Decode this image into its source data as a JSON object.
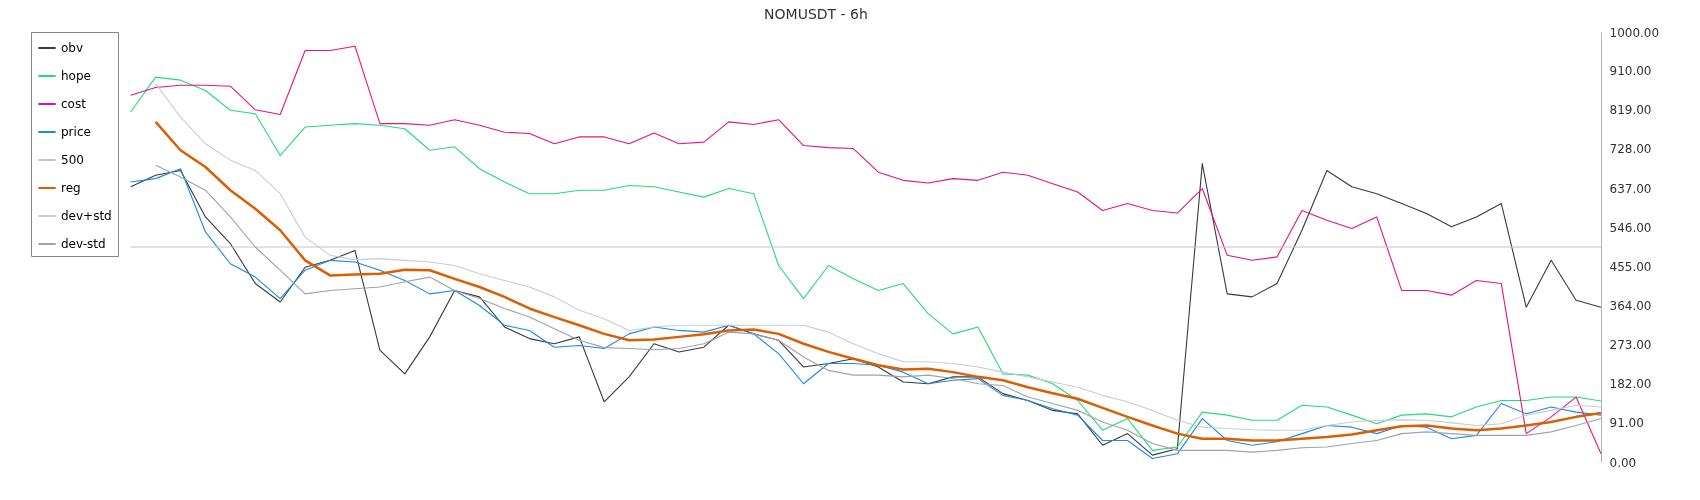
{
  "chart_data": {
    "type": "line",
    "title": "NOMUSDT - 6h",
    "categories": [
      null,
      null,
      null,
      null,
      null,
      null,
      null,
      null,
      null,
      null,
      null,
      null,
      null,
      null,
      null,
      null,
      null,
      null,
      null,
      null,
      null,
      null,
      null,
      null,
      null,
      null,
      null,
      null,
      null,
      null,
      null,
      null,
      null,
      null,
      null,
      null,
      null,
      null,
      null,
      null,
      null,
      null,
      null,
      null,
      null,
      null,
      null,
      null,
      null,
      null,
      null,
      null,
      null,
      null,
      null,
      null,
      null,
      null,
      null,
      null,
      null,
      null,
      null,
      null
    ],
    "series": [
      {
        "name": "obv",
        "color": "#3a3a3a",
        "values": [
          null,
          null,
          null,
          null,
          640,
          667,
          678,
          570,
          508,
          415,
          372,
          453,
          469,
          492,
          260,
          205,
          291,
          399,
          384,
          314,
          287,
          275,
          291,
          140,
          198,
          275,
          256,
          267,
          318,
          298,
          283,
          221,
          229,
          240,
          221,
          186,
          182,
          198,
          198,
          159,
          143,
          120,
          112,
          39,
          66,
          16,
          31,
          694,
          391,
          384,
          415,
          539,
          678,
          640,
          624,
          601,
          578,
          547,
          570,
          601,
          360,
          469,
          376,
          360
        ]
      },
      {
        "name": "hope",
        "color": "#22dd77",
        "values": [
          null,
          null,
          null,
          null,
          814,
          895,
          888,
          864,
          818,
          810,
          713,
          779,
          783,
          787,
          783,
          775,
          725,
          733,
          682,
          651,
          624,
          624,
          632,
          632,
          643,
          640,
          628,
          616,
          636,
          624,
          457,
          380,
          457,
          426,
          399,
          415,
          345,
          298,
          314,
          205,
          202,
          182,
          143,
          74,
          101,
          27,
          35,
          116,
          109,
          97,
          97,
          132,
          128,
          109,
          89,
          109,
          112,
          105,
          128,
          143,
          143,
          151,
          151,
          142
        ]
      },
      {
        "name": "cost",
        "color": "#e8137f",
        "values": [
          null,
          null,
          null,
          null,
          853,
          871,
          876,
          876,
          874,
          819,
          808,
          957,
          957,
          967,
          787,
          787,
          783,
          796,
          783,
          767,
          764,
          740,
          756,
          756,
          740,
          765,
          740,
          744,
          791,
          785,
          796,
          736,
          731,
          729,
          674,
          655,
          649,
          659,
          655,
          674,
          667,
          647,
          628,
          585,
          601,
          585,
          579,
          636,
          481,
          469,
          477,
          585,
          562,
          543,
          570,
          399,
          399,
          388,
          422,
          415,
          66,
          105,
          151,
          19
        ]
      },
      {
        "name": "price",
        "color": "#1e88e5",
        "values": [
          null,
          null,
          null,
          null,
          651,
          659,
          682,
          535,
          461,
          430,
          380,
          446,
          469,
          465,
          446,
          422,
          391,
          399,
          364,
          318,
          306,
          267,
          271,
          264,
          298,
          314,
          306,
          302,
          318,
          298,
          252,
          182,
          229,
          229,
          225,
          209,
          182,
          190,
          194,
          155,
          143,
          124,
          109,
          50,
          50,
          8,
          19,
          101,
          50,
          39,
          47,
          66,
          85,
          81,
          66,
          85,
          81,
          54,
          62,
          136,
          112,
          128,
          116,
          109
        ]
      },
      {
        "name": "500",
        "color": "#c4c4c4",
        "values": [
          null,
          null,
          null,
          null,
          500,
          500,
          500,
          500,
          500,
          500,
          500,
          500,
          500,
          500,
          500,
          500,
          500,
          500,
          500,
          500,
          500,
          500,
          500,
          500,
          500,
          500,
          500,
          500,
          500,
          500,
          500,
          500,
          500,
          500,
          500,
          500,
          500,
          500,
          500,
          500,
          500,
          500,
          500,
          500,
          500,
          500,
          500,
          500,
          500,
          500,
          500,
          500,
          500,
          500,
          500,
          500,
          500,
          500,
          500,
          500,
          500,
          500,
          500,
          500
        ]
      },
      {
        "name": "reg",
        "color": "#d95f02",
        "values": [
          null,
          null,
          null,
          null,
          null,
          791,
          725,
          686,
          632,
          589,
          539,
          469,
          434,
          436,
          438,
          447,
          446,
          426,
          407,
          384,
          357,
          337,
          318,
          298,
          283,
          285,
          291,
          297,
          306,
          308,
          298,
          275,
          256,
          240,
          225,
          215,
          217,
          209,
          198,
          190,
          174,
          160,
          147,
          126,
          105,
          85,
          66,
          54,
          54,
          50,
          50,
          54,
          58,
          64,
          74,
          83,
          85,
          78,
          74,
          78,
          85,
          93,
          105,
          114
        ]
      },
      {
        "name": "dev+std",
        "color": "#c8cdd2",
        "values": [
          null,
          null,
          null,
          null,
          null,
          880,
          802,
          740,
          702,
          678,
          624,
          523,
          481,
          470,
          473,
          469,
          465,
          457,
          438,
          422,
          407,
          384,
          353,
          333,
          306,
          314,
          318,
          318,
          318,
          318,
          318,
          318,
          302,
          275,
          252,
          233,
          233,
          229,
          221,
          209,
          198,
          186,
          174,
          155,
          140,
          120,
          97,
          81,
          78,
          75,
          74,
          74,
          85,
          93,
          97,
          98,
          97,
          91,
          85,
          89,
          109,
          120,
          132,
          128
        ]
      },
      {
        "name": "dev-std",
        "color": "#9aa4ad",
        "values": [
          null,
          null,
          null,
          null,
          null,
          690,
          663,
          632,
          570,
          500,
          446,
          391,
          399,
          403,
          407,
          419,
          430,
          399,
          380,
          357,
          337,
          310,
          283,
          266,
          264,
          261,
          264,
          275,
          302,
          298,
          283,
          244,
          213,
          202,
          202,
          198,
          202,
          194,
          182,
          178,
          151,
          136,
          120,
          93,
          74,
          43,
          27,
          27,
          27,
          23,
          27,
          33,
          35,
          43,
          50,
          66,
          70,
          66,
          62,
          62,
          62,
          70,
          85,
          101
        ]
      }
    ],
    "ylim": [
      0,
      1000
    ],
    "yticks": [
      {
        "value": 0,
        "label": "0.00"
      },
      {
        "value": 91,
        "label": "91.00"
      },
      {
        "value": 182,
        "label": "182.00"
      },
      {
        "value": 273,
        "label": "273.00"
      },
      {
        "value": 364,
        "label": "364.00"
      },
      {
        "value": 455,
        "label": "455.00"
      },
      {
        "value": 546,
        "label": "546.00"
      },
      {
        "value": 637,
        "label": "637.00"
      },
      {
        "value": 728,
        "label": "728.00"
      },
      {
        "value": 819,
        "label": "819.00"
      },
      {
        "value": 910,
        "label": "910.00"
      },
      {
        "value": 1000,
        "label": "1000.00"
      }
    ],
    "tick_labels": "y",
    "legend": "top left",
    "marker": "none",
    "line_style": "solid"
  }
}
